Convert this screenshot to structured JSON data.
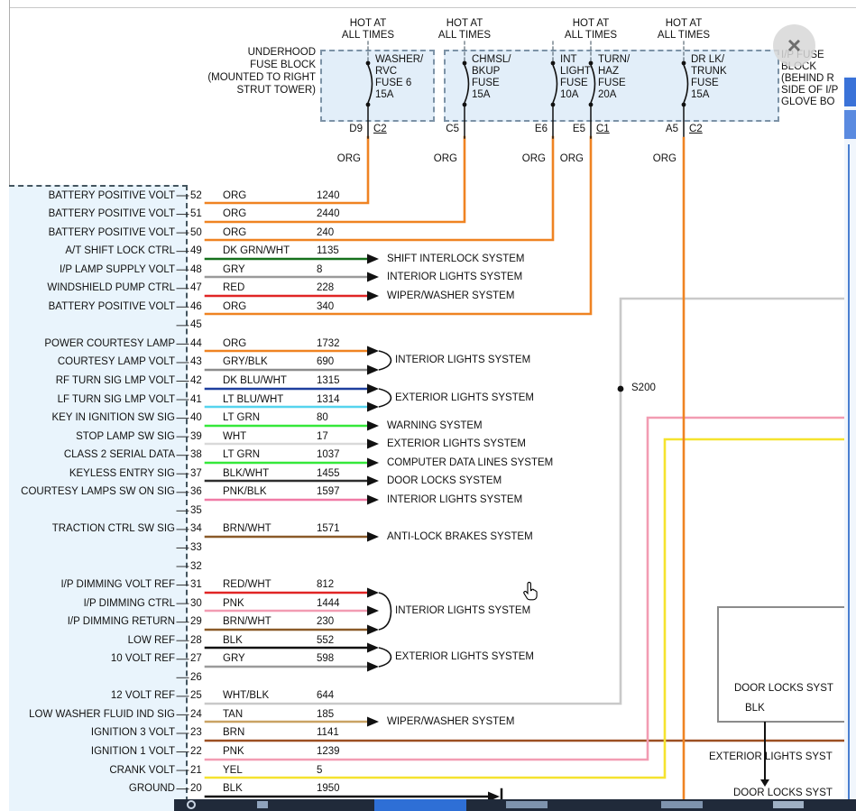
{
  "colors": {
    "ORG": "#ef8322",
    "DK GRN/WHT": "#15701c",
    "GRY": "#9a9a9a",
    "RED": "#e02525",
    "GRY/BLK": "#8c8c8c",
    "DK BLU/WHT": "#1e3f9e",
    "LT BLU/WHT": "#55d4ee",
    "LT GRN": "#35e83a",
    "WHT": "#d9d9d9",
    "BLK/WHT": "#2e2e2e",
    "PNK/BLK": "#f07ba6",
    "BRN/WHT": "#8a5a28",
    "RED/WHT": "#e02525",
    "PNK": "#f29cb2",
    "BLK": "#111111",
    "TAN": "#c9a263",
    "BRN": "#9c4f22",
    "YEL": "#f5e32e",
    "WHT/BLK": "#c9c9c9"
  },
  "fuse_area": {
    "hot_line1": "HOT AT",
    "hot_line2": "ALL TIMES",
    "underhood": [
      "UNDERHOOD",
      "FUSE BLOCK",
      "(MOUNTED TO RIGHT",
      "STRUT TOWER)"
    ],
    "ip_block": [
      "I/P FUSE",
      "BLOCK",
      "(BEHIND R",
      "SIDE OF I/P",
      "GLOVE BO"
    ],
    "fuses": [
      {
        "lines": [
          "WASHER/",
          "RVC",
          "FUSE 6",
          "15A"
        ],
        "terminal": "D9",
        "connector": "C2",
        "wire": "ORG"
      },
      {
        "lines": [
          "CHMSL/",
          "BKUP",
          "FUSE",
          "15A"
        ],
        "terminal": "C5",
        "connector": "",
        "wire": "ORG"
      },
      {
        "lines": [
          "INT",
          "LIGHT",
          "FUSE",
          "10A"
        ],
        "terminal": "E6",
        "connector": "",
        "wire": "ORG"
      },
      {
        "lines": [
          "TURN/",
          "HAZ",
          "FUSE",
          "20A"
        ],
        "terminal": "E5",
        "connector": "C1",
        "wire": "ORG"
      },
      {
        "lines": [
          "DR LK/",
          "TRUNK",
          "FUSE",
          "15A"
        ],
        "terminal": "A5",
        "connector": "C2",
        "wire": "ORG"
      }
    ]
  },
  "connector": {
    "rows": [
      {
        "pin": 52,
        "label": "BATTERY POSITIVE VOLT",
        "color": "ORG",
        "circuit": "1240",
        "route": "fuse:0"
      },
      {
        "pin": 51,
        "label": "BATTERY POSITIVE VOLT",
        "color": "ORG",
        "circuit": "2440",
        "route": "fuse:1"
      },
      {
        "pin": 50,
        "label": "BATTERY POSITIVE VOLT",
        "color": "ORG",
        "circuit": "240",
        "route": "fuse:2"
      },
      {
        "pin": 49,
        "label": "A/T SHIFT LOCK CTRL",
        "color": "DK GRN/WHT",
        "circuit": "1135",
        "system": "SHIFT INTERLOCK SYSTEM"
      },
      {
        "pin": 48,
        "label": "I/P LAMP SUPPLY VOLT",
        "color": "GRY",
        "circuit": "8",
        "system": "INTERIOR LIGHTS SYSTEM"
      },
      {
        "pin": 47,
        "label": "WINDSHIELD PUMP CTRL",
        "color": "RED",
        "circuit": "228",
        "system": "WIPER/WASHER SYSTEM"
      },
      {
        "pin": 46,
        "label": "BATTERY POSITIVE VOLT",
        "color": "ORG",
        "circuit": "340",
        "route": "fuse:3"
      },
      {
        "pin": 45
      },
      {
        "pin": 44,
        "label": "POWER COURTESY LAMP",
        "color": "ORG",
        "circuit": "1732",
        "group": "A"
      },
      {
        "pin": 43,
        "label": "COURTESY LAMP VOLT",
        "color": "GRY/BLK",
        "circuit": "690",
        "group": "A"
      },
      {
        "pin": 42,
        "label": "RF TURN SIG LMP VOLT",
        "color": "DK BLU/WHT",
        "circuit": "1315",
        "group": "B"
      },
      {
        "pin": 41,
        "label": "LF TURN SIG LMP VOLT",
        "color": "LT BLU/WHT",
        "circuit": "1314",
        "group": "B"
      },
      {
        "pin": 40,
        "label": "KEY IN IGNITION SW SIG",
        "color": "LT GRN",
        "circuit": "80",
        "system": "WARNING SYSTEM"
      },
      {
        "pin": 39,
        "label": "STOP LAMP SW SIG",
        "color": "WHT",
        "circuit": "17",
        "system": "EXTERIOR LIGHTS SYSTEM"
      },
      {
        "pin": 38,
        "label": "CLASS 2 SERIAL DATA",
        "color": "LT GRN",
        "circuit": "1037",
        "system": "COMPUTER DATA LINES SYSTEM"
      },
      {
        "pin": 37,
        "label": "KEYLESS ENTRY SIG",
        "color": "BLK/WHT",
        "circuit": "1455",
        "system": "DOOR LOCKS SYSTEM"
      },
      {
        "pin": 36,
        "label": "COURTESY LAMPS SW ON SIG",
        "color": "PNK/BLK",
        "circuit": "1597",
        "system": "INTERIOR LIGHTS SYSTEM"
      },
      {
        "pin": 35
      },
      {
        "pin": 34,
        "label": "TRACTION CTRL SW SIG",
        "color": "BRN/WHT",
        "circuit": "1571",
        "system": "ANTI-LOCK BRAKES SYSTEM"
      },
      {
        "pin": 33
      },
      {
        "pin": 32
      },
      {
        "pin": 31,
        "label": "I/P DIMMING VOLT REF",
        "color": "RED/WHT",
        "circuit": "812",
        "group": "C"
      },
      {
        "pin": 30,
        "label": "I/P DIMMING CTRL",
        "color": "PNK",
        "circuit": "1444",
        "group": "C"
      },
      {
        "pin": 29,
        "label": "I/P DIMMING RETURN",
        "color": "BRN/WHT",
        "circuit": "230",
        "group": "C"
      },
      {
        "pin": 28,
        "label": "LOW REF",
        "color": "BLK",
        "circuit": "552",
        "group": "D"
      },
      {
        "pin": 27,
        "label": "10 VOLT REF",
        "color": "GRY",
        "circuit": "598",
        "group": "D"
      },
      {
        "pin": 26
      },
      {
        "pin": 25,
        "label": "12 VOLT REF",
        "color": "WHT/BLK",
        "circuit": "644",
        "route": "gray"
      },
      {
        "pin": 24,
        "label": "LOW WASHER FLUID IND SIG",
        "color": "TAN",
        "circuit": "185",
        "system": "WIPER/WASHER SYSTEM"
      },
      {
        "pin": 23,
        "label": "IGNITION 3 VOLT",
        "color": "BRN",
        "circuit": "1141",
        "route": "brown"
      },
      {
        "pin": 22,
        "label": "IGNITION 1 VOLT",
        "color": "PNK",
        "circuit": "1239",
        "route": "pink"
      },
      {
        "pin": 21,
        "label": "CRANK VOLT",
        "color": "YEL",
        "circuit": "5",
        "route": "yellow"
      },
      {
        "pin": 20,
        "label": "GROUND",
        "color": "BLK",
        "circuit": "1950",
        "route": "ground"
      }
    ],
    "groups": {
      "A": "INTERIOR LIGHTS SYSTEM",
      "B": "EXTERIOR LIGHTS SYSTEM",
      "C": "INTERIOR LIGHTS SYSTEM",
      "D": "EXTERIOR LIGHTS SYSTEM"
    }
  },
  "right_side": {
    "splice": "S200",
    "door_box_title": "DOOR LOCKS SYST",
    "door_box_wire": "BLK",
    "exterior_label": "EXTERIOR LIGHTS SYST",
    "door_bottom_label": "DOOR LOCKS SYST"
  },
  "chrome": {
    "close_glyph": "×"
  }
}
